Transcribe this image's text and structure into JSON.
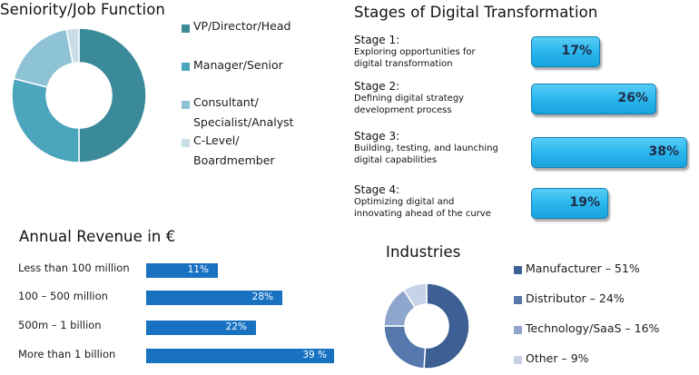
{
  "seniority": {
    "title": "Seniority/Job Function",
    "legend": [
      {
        "line1": "VP/Director/Head",
        "line2": "",
        "color": "#3a8a99"
      },
      {
        "line1": "Manager/Senior",
        "line2": "",
        "color": "#4aa5bd"
      },
      {
        "line1": "Consultant/",
        "line2": "Specialist/Analyst",
        "color": "#8dc3d4"
      },
      {
        "line1": "C-Level/",
        "line2": "Boardmember",
        "color": "#c9dde6"
      }
    ]
  },
  "stages": {
    "title": "Stages of Digital Transformation",
    "items": [
      {
        "title": "Stage 1:",
        "desc1": "Exploring opportunities for",
        "desc2": "digital transformation",
        "pct": "17%"
      },
      {
        "title": "Stage 2:",
        "desc1": "Defining digital strategy",
        "desc2": "development process",
        "pct": "26%"
      },
      {
        "title": "Stage 3:",
        "desc1": "Building, testing, and launching",
        "desc2": "digital capabilities",
        "pct": "38%"
      },
      {
        "title": "Stage 4:",
        "desc1": "Optimizing digital and",
        "desc2": "innovating ahead of the curve",
        "pct": "19%"
      }
    ]
  },
  "revenue": {
    "title": "Annual Revenue in €",
    "items": [
      {
        "label": "Less than 100 million",
        "pct": "11%"
      },
      {
        "label": "100 – 500 million",
        "pct": "28%"
      },
      {
        "label": "500m – 1 billion",
        "pct": "22%"
      },
      {
        "label": "More than 1 billion",
        "pct": "39 %"
      }
    ]
  },
  "industries": {
    "title": "Industries",
    "legend": [
      {
        "label": "Manufacturer – 51%",
        "color": "#3d5f94"
      },
      {
        "label": "Distributor – 24%",
        "color": "#5579ad"
      },
      {
        "label": "Technology/SaaS – 16%",
        "color": "#8ea6cc"
      },
      {
        "label": "Other – 9%",
        "color": "#c6d3e6"
      }
    ]
  },
  "chart_data": [
    {
      "type": "pie",
      "title": "Seniority/Job Function",
      "categories": [
        "VP/Director/Head",
        "Manager/Senior",
        "Consultant/Specialist/Analyst",
        "C-Level/Boardmember"
      ],
      "values": [
        50,
        29,
        18,
        3
      ],
      "colors": [
        "#3a8a99",
        "#4aa5bd",
        "#8dc3d4",
        "#c9dde6"
      ]
    },
    {
      "type": "bar",
      "title": "Stages of Digital Transformation",
      "categories": [
        "Stage 1",
        "Stage 2",
        "Stage 3",
        "Stage 4"
      ],
      "values": [
        17,
        26,
        38,
        19
      ]
    },
    {
      "type": "bar",
      "title": "Annual Revenue in €",
      "categories": [
        "Less than 100 million",
        "100 – 500 million",
        "500m – 1 billion",
        "More than 1 billion"
      ],
      "values": [
        11,
        28,
        22,
        39
      ]
    },
    {
      "type": "pie",
      "title": "Industries",
      "categories": [
        "Manufacturer",
        "Distributor",
        "Technology/SaaS",
        "Other"
      ],
      "values": [
        51,
        24,
        16,
        9
      ],
      "colors": [
        "#3d5f94",
        "#5579ad",
        "#8ea6cc",
        "#c6d3e6"
      ]
    }
  ]
}
